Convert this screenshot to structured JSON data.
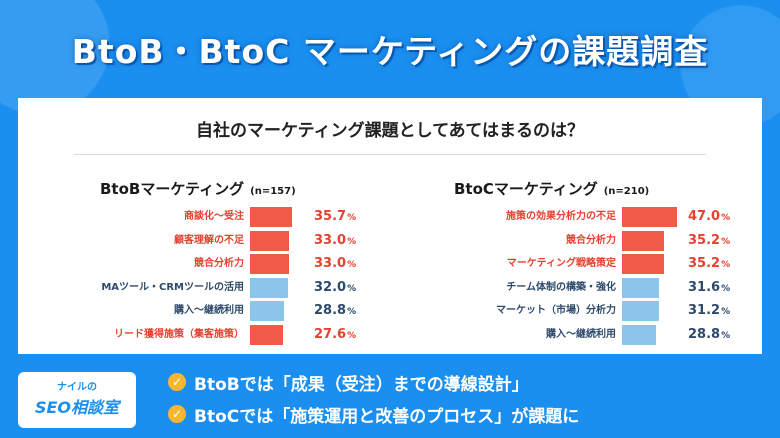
{
  "header": {
    "title": "BtoB・BtoC マーケティングの課題調査"
  },
  "question": "自社のマーケティング課題としてあてはまるのは？",
  "colors": {
    "background": "#1a8ff0",
    "highlight": "#f05a46",
    "normal": "#8cc5ea",
    "highlight_text": "#e5412f",
    "normal_text": "#2e4a6b",
    "check": "#f5b731"
  },
  "chart_data": [
    {
      "type": "bar",
      "title": "BtoBマーケティング",
      "sample": "(n=157)",
      "categories": [
        "商談化～受注",
        "顧客理解の不足",
        "競合分析力",
        "MAツール・CRMツールの活用",
        "購入～継続利用",
        "リード獲得施策（集客施策）"
      ],
      "values": [
        35.7,
        33.0,
        33.0,
        32.0,
        28.8,
        27.6
      ],
      "highlight": [
        true,
        true,
        true,
        false,
        false,
        true
      ],
      "unit": "%"
    },
    {
      "type": "bar",
      "title": "BtoCマーケティング",
      "sample": "(n=210)",
      "categories": [
        "施策の効果分析力の不足",
        "競合分析力",
        "マーケティング戦略策定",
        "チーム体制の構築・強化",
        "マーケット（市場）分析力",
        "購入～継続利用"
      ],
      "values": [
        47.0,
        35.2,
        35.2,
        31.6,
        31.2,
        28.8
      ],
      "highlight": [
        true,
        true,
        true,
        false,
        false,
        false
      ],
      "unit": "%"
    }
  ],
  "summary": [
    "BtoBでは「成果（受注）までの導線設計」",
    "BtoCでは「施策運用と改善のプロセス」が課題に"
  ],
  "logo": {
    "top": "ナイルの",
    "main": "SEO相談室"
  },
  "icons": {
    "check": "check-icon"
  }
}
